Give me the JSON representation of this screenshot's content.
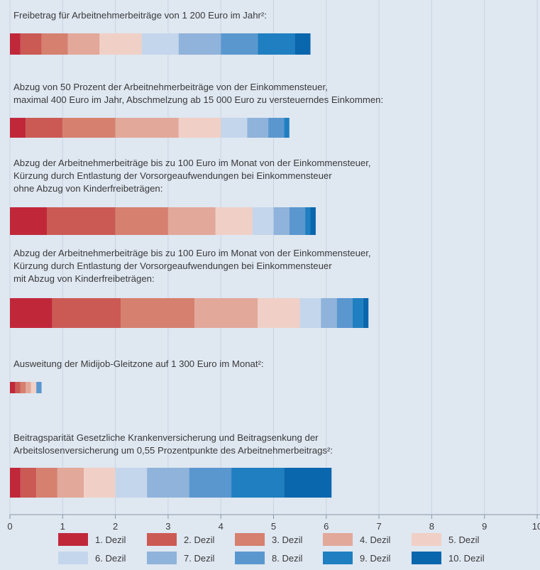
{
  "chart_data": {
    "type": "bar",
    "orientation": "horizontal",
    "stacked": true,
    "xlim": [
      0,
      10
    ],
    "x_ticks": [
      "0",
      "1",
      "2",
      "3",
      "4",
      "5",
      "6",
      "7",
      "8",
      "9",
      "10"
    ],
    "grid": true,
    "legend_position": "bottom",
    "series": [
      {
        "name": "1. Dezil",
        "color": "#c0283a"
      },
      {
        "name": "2. Dezil",
        "color": "#cb5a54"
      },
      {
        "name": "3. Dezil",
        "color": "#d6806f"
      },
      {
        "name": "4. Dezil",
        "color": "#e2a89a"
      },
      {
        "name": "5. Dezil",
        "color": "#f0d0c6"
      },
      {
        "name": "6. Dezil",
        "color": "#c4d6ec"
      },
      {
        "name": "7. Dezil",
        "color": "#8fb3da"
      },
      {
        "name": "8. Dezil",
        "color": "#5b97cf"
      },
      {
        "name": "9. Dezil",
        "color": "#1f7fc0"
      },
      {
        "name": "10. Dezil",
        "color": "#0a66ad"
      }
    ],
    "bars": [
      {
        "label_lines": [
          "Freibetrag für Arbeitnehmerbeiträge von 1 200 Euro im Jahr²:"
        ],
        "values": [
          0.2,
          0.4,
          0.5,
          0.6,
          0.8,
          0.7,
          0.8,
          0.7,
          0.7,
          0.3
        ]
      },
      {
        "label_lines": [
          "Abzug von 50 Prozent der Arbeitnehmerbeiträge von der Einkommensteuer,",
          "maximal 400 Euro im Jahr, Abschmelzung ab 15 000 Euro zu versteuerndes Einkommen:"
        ],
        "values": [
          0.3,
          0.7,
          1.0,
          1.2,
          0.8,
          0.5,
          0.4,
          0.3,
          0.1,
          0.0
        ]
      },
      {
        "label_lines": [
          "Abzug der Arbeitnehmerbeiträge bis zu 100 Euro im Monat von der Einkommensteuer,",
          "Kürzung durch Entlastung der Vorsorgeaufwendungen bei Einkommensteuer",
          "ohne Abzug von Kinderfreibeträgen:"
        ],
        "values": [
          0.7,
          1.3,
          1.0,
          0.9,
          0.7,
          0.4,
          0.3,
          0.3,
          0.1,
          0.1
        ]
      },
      {
        "label_lines": [
          "Abzug der Arbeitnehmerbeiträge bis zu 100 Euro im Monat von der Einkommensteuer,",
          "Kürzung durch Entlastung der Vorsorgeaufwendungen bei Einkommensteuer",
          "mit Abzug von Kinderfreibeträgen:"
        ],
        "values": [
          0.8,
          1.3,
          1.4,
          1.2,
          0.8,
          0.4,
          0.3,
          0.3,
          0.2,
          0.1
        ]
      },
      {
        "label_lines": [
          "Ausweitung der Midijob-Gleitzone auf 1 300 Euro im Monat²:"
        ],
        "values": [
          0.1,
          0.1,
          0.1,
          0.1,
          0.1,
          0.0,
          0.0,
          0.1,
          0.0,
          0.0
        ]
      },
      {
        "label_lines": [
          "Beitragsparität Gesetzliche Krankenversicherung und Beitragsenkung der",
          "Arbeitslosenversicherung um 0,55 Prozentpunkte des Arbeitnehmerbeitrags²:"
        ],
        "values": [
          0.2,
          0.3,
          0.4,
          0.5,
          0.6,
          0.6,
          0.8,
          0.8,
          1.0,
          0.9
        ]
      }
    ]
  }
}
